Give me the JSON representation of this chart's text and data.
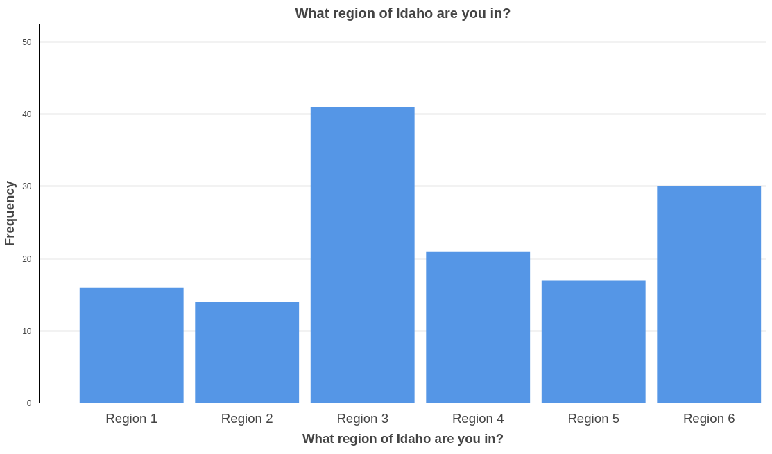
{
  "chart_data": {
    "type": "bar",
    "title": "What region of Idaho are you in?",
    "xlabel": "What region of Idaho are you in?",
    "ylabel": "Frequency",
    "categories": [
      "Region 1",
      "Region 2",
      "Region 3",
      "Region 4",
      "Region 5",
      "Region 6"
    ],
    "values": [
      16,
      14,
      41,
      21,
      17,
      30
    ],
    "color": "#5596e6",
    "ylim": [
      0,
      52.5
    ],
    "yticks": [
      0,
      10,
      20,
      30,
      40,
      50
    ],
    "grid": "y"
  }
}
